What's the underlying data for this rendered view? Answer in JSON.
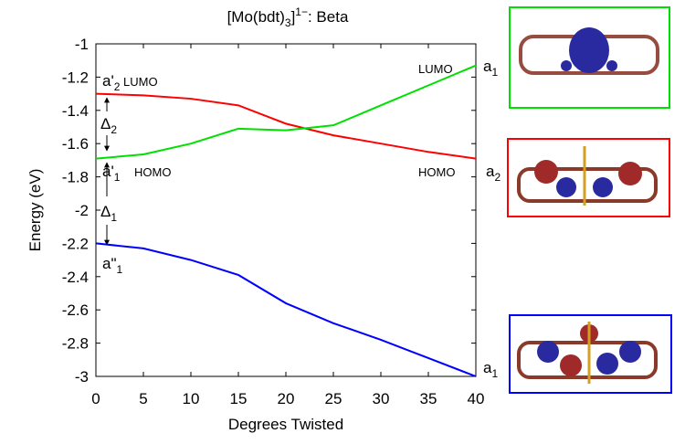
{
  "chart_data": {
    "type": "line",
    "title_parts": [
      "[Mo(bdt)",
      "3",
      "]",
      "1−",
      ": Beta"
    ],
    "xlabel": "Degrees Twisted",
    "ylabel": "Energy (eV)",
    "x": [
      0,
      5,
      10,
      15,
      20,
      25,
      30,
      35,
      40
    ],
    "series": [
      {
        "color": "#ff0000",
        "values": [
          -1.3,
          -1.31,
          -1.33,
          -1.37,
          -1.48,
          -1.55,
          -1.6,
          -1.65,
          -1.69
        ]
      },
      {
        "color": "#00e000",
        "values": [
          -1.69,
          -1.665,
          -1.6,
          -1.51,
          -1.52,
          -1.49,
          -1.37,
          -1.25,
          -1.13
        ]
      },
      {
        "color": "#0000ff",
        "values": [
          -2.2,
          -2.23,
          -2.3,
          -2.39,
          -2.56,
          -2.68,
          -2.78,
          -2.89,
          -3.0
        ]
      }
    ],
    "xlim": [
      0,
      40
    ],
    "ylim": [
      -3,
      -1
    ],
    "xticks": [
      0,
      5,
      10,
      15,
      20,
      25,
      30,
      35,
      40
    ],
    "yticks": [
      -3,
      -2.8,
      -2.6,
      -2.4,
      -2.2,
      -2,
      -1.8,
      -1.6,
      -1.4,
      -1.2,
      -1
    ],
    "annotations": [
      [
        "a'",
        "2",
        " LUMO"
      ],
      [
        "Δ",
        "2"
      ],
      [
        "a'",
        "1",
        " HOMO"
      ],
      [
        "Δ",
        "1"
      ],
      [
        "a\"",
        "1"
      ],
      [
        "LUMO"
      ],
      [
        "HOMO"
      ],
      [
        "a",
        "1"
      ],
      [
        "a",
        "2"
      ],
      [
        "a",
        "1"
      ]
    ]
  }
}
